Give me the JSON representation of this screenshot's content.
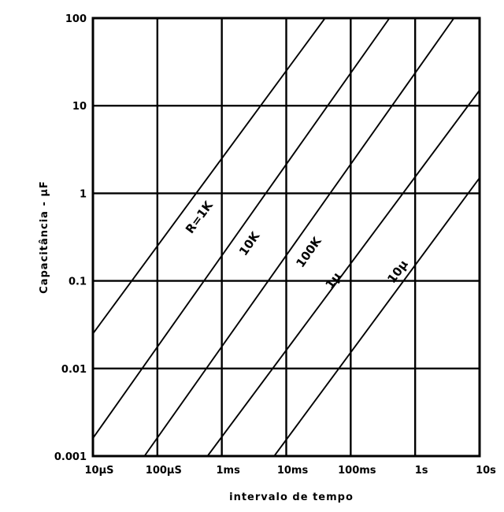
{
  "chart_data": {
    "type": "line",
    "title": "",
    "xlabel": "intervalo de tempo",
    "ylabel": "Capacitância - µF",
    "x_scale": "log",
    "y_scale": "log",
    "xlim": [
      1e-05,
      10
    ],
    "ylim": [
      0.001,
      100
    ],
    "grid": true,
    "legend": "none",
    "x_ticks": [
      {
        "value": 1e-05,
        "label": "10µS"
      },
      {
        "value": 0.0001,
        "label": "100µS"
      },
      {
        "value": 0.001,
        "label": "1ms"
      },
      {
        "value": 0.01,
        "label": "10ms"
      },
      {
        "value": 0.1,
        "label": "100ms"
      },
      {
        "value": 1,
        "label": "1s"
      },
      {
        "value": 10,
        "label": "10s"
      }
    ],
    "y_ticks": [
      {
        "value": 0.001,
        "label": "0.001"
      },
      {
        "value": 0.01,
        "label": "0.01"
      },
      {
        "value": 0.1,
        "label": "0.1"
      },
      {
        "value": 1,
        "label": "1"
      },
      {
        "value": 10,
        "label": "10"
      },
      {
        "value": 100,
        "label": "100"
      }
    ],
    "series": [
      {
        "name": "R=1K",
        "label_at": {
          "x": 0.0005,
          "y": 0.5
        },
        "points": [
          {
            "x": 1e-05,
            "y": 0.025
          },
          {
            "x": 0.04,
            "y": 100
          }
        ]
      },
      {
        "name": "10K",
        "label_at": {
          "x": 0.003,
          "y": 0.25
        },
        "points": [
          {
            "x": 1e-05,
            "y": 0.0016
          },
          {
            "x": 0.4,
            "y": 100
          }
        ]
      },
      {
        "name": "100K",
        "label_at": {
          "x": 0.025,
          "y": 0.2
        },
        "points": [
          {
            "x": 6.3e-05,
            "y": 0.001
          },
          {
            "x": 4,
            "y": 100
          }
        ]
      },
      {
        "name": "1µ",
        "label_at": {
          "x": 0.06,
          "y": 0.095
        },
        "points": [
          {
            "x": 0.0006,
            "y": 0.001
          },
          {
            "x": 10,
            "y": 15
          }
        ]
      },
      {
        "name": "10µ",
        "label_at": {
          "x": 0.6,
          "y": 0.12
        },
        "points": [
          {
            "x": 0.0065,
            "y": 0.001
          },
          {
            "x": 10,
            "y": 1.5
          }
        ]
      }
    ]
  }
}
